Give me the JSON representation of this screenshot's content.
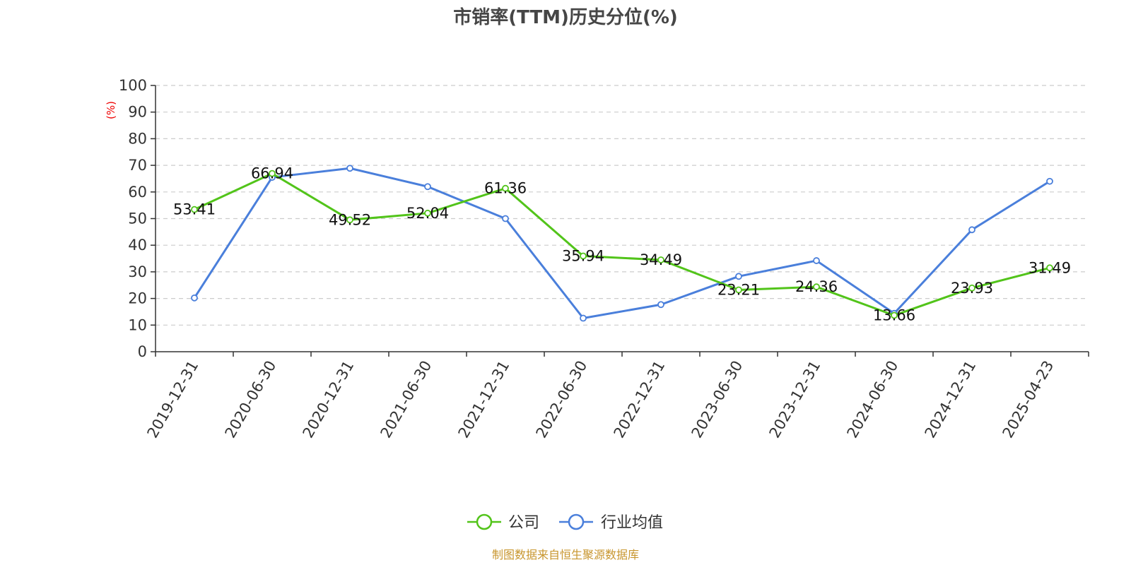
{
  "chart_data": {
    "type": "line",
    "title": "市销率(TTM)历史分位(%)",
    "ylabel": "(%)",
    "xlabel": "",
    "ylim": [
      0,
      100
    ],
    "yticks": [
      0,
      10,
      20,
      30,
      40,
      50,
      60,
      70,
      80,
      90,
      100
    ],
    "categories": [
      "2019-12-31",
      "2020-06-30",
      "2020-12-31",
      "2021-06-30",
      "2021-12-31",
      "2022-06-30",
      "2022-12-31",
      "2023-06-30",
      "2023-12-31",
      "2024-06-30",
      "2024-12-31",
      "2025-04-23"
    ],
    "grid": true,
    "legend_position": "bottom-center",
    "series": [
      {
        "name": "公司",
        "color": "#52c41a",
        "values": [
          53.41,
          66.94,
          49.52,
          52.04,
          61.36,
          35.94,
          34.49,
          23.21,
          24.36,
          13.66,
          23.93,
          31.49
        ],
        "labels": [
          "53.41",
          "66.94",
          "49.52",
          "52.04",
          "61.36",
          "35.94",
          "34.49",
          "23.21",
          "24.36",
          "13.66",
          "23.93",
          "31.49"
        ]
      },
      {
        "name": "行业均值",
        "color": "#4a7fdb",
        "values": [
          20.2,
          65.5,
          68.9,
          62.0,
          50.0,
          12.6,
          17.7,
          28.3,
          34.2,
          14.4,
          45.8,
          64.0
        ]
      }
    ],
    "source": "制图数据来自恒生聚源数据库"
  }
}
